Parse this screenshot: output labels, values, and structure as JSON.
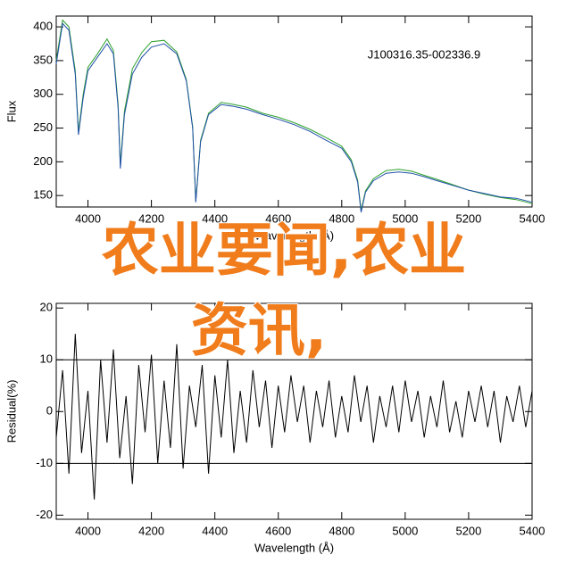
{
  "chart_data": [
    {
      "type": "line",
      "xlabel": "Wavelength (Å)",
      "ylabel": "Flux",
      "annotation": "J100316.35-002336.9",
      "xlim": [
        3900,
        5400
      ],
      "ylim": [
        133,
        416
      ],
      "xticks": [
        4000,
        4200,
        4400,
        4600,
        4800,
        5000,
        5200,
        5400
      ],
      "yticks": [
        150,
        200,
        250,
        300,
        350,
        400
      ],
      "x": [
        3900,
        3920,
        3940,
        3960,
        3970,
        3985,
        4000,
        4030,
        4060,
        4080,
        4095,
        4102,
        4115,
        4140,
        4170,
        4200,
        4240,
        4280,
        4310,
        4330,
        4340,
        4355,
        4380,
        4420,
        4460,
        4500,
        4550,
        4600,
        4650,
        4700,
        4750,
        4800,
        4830,
        4850,
        4861,
        4875,
        4900,
        4940,
        4980,
        5020,
        5060,
        5100,
        5150,
        5200,
        5250,
        5300,
        5350,
        5400
      ],
      "series": [
        {
          "color": "#2ca02c",
          "values": [
            350,
            410,
            400,
            335,
            245,
            300,
            340,
            360,
            382,
            365,
            285,
            195,
            275,
            338,
            362,
            378,
            380,
            363,
            322,
            252,
            142,
            232,
            272,
            288,
            285,
            281,
            272,
            266,
            258,
            248,
            236,
            223,
            203,
            173,
            128,
            157,
            175,
            187,
            189,
            186,
            180,
            174,
            166,
            158,
            152,
            147,
            144,
            138
          ]
        },
        {
          "color": "#1f4fa8",
          "values": [
            345,
            405,
            395,
            330,
            240,
            295,
            335,
            355,
            375,
            360,
            280,
            190,
            270,
            330,
            355,
            370,
            375,
            360,
            320,
            250,
            140,
            230,
            270,
            285,
            282,
            278,
            270,
            263,
            255,
            245,
            232,
            220,
            200,
            170,
            125,
            155,
            172,
            183,
            185,
            183,
            178,
            172,
            165,
            158,
            153,
            148,
            146,
            140
          ]
        }
      ]
    },
    {
      "type": "line",
      "xlabel": "Wavelength (Å)",
      "ylabel": "Residual(%)",
      "xlim": [
        3900,
        5400
      ],
      "ylim": [
        -20.8,
        20.9
      ],
      "xticks": [
        4000,
        4200,
        4400,
        4600,
        4800,
        5000,
        5200,
        5400
      ],
      "yticks": [
        -20,
        -10,
        0,
        10,
        20
      ],
      "hlines": [
        -10,
        10
      ],
      "x": [
        3900,
        3920,
        3940,
        3960,
        3980,
        4000,
        4020,
        4040,
        4060,
        4080,
        4100,
        4120,
        4140,
        4160,
        4180,
        4200,
        4220,
        4240,
        4260,
        4280,
        4300,
        4320,
        4340,
        4360,
        4380,
        4400,
        4420,
        4440,
        4460,
        4480,
        4500,
        4520,
        4540,
        4560,
        4580,
        4600,
        4620,
        4640,
        4660,
        4680,
        4700,
        4720,
        4740,
        4760,
        4780,
        4800,
        4820,
        4840,
        4860,
        4880,
        4900,
        4920,
        4940,
        4960,
        4980,
        5000,
        5020,
        5040,
        5060,
        5080,
        5100,
        5120,
        5140,
        5160,
        5180,
        5200,
        5220,
        5240,
        5260,
        5280,
        5300,
        5320,
        5340,
        5360,
        5380,
        5400
      ],
      "series": [
        {
          "color": "#000000",
          "values": [
            -5,
            8,
            -12,
            15,
            -8,
            4,
            -17,
            10,
            -6,
            12,
            -9,
            3,
            -14,
            9,
            -4,
            11,
            -10,
            6,
            -7,
            13,
            -11,
            5,
            -3,
            9,
            -12,
            7,
            -5,
            10,
            -8,
            4,
            -6,
            8,
            -3,
            6,
            -7,
            5,
            -4,
            7,
            -2,
            5,
            -6,
            4,
            -3,
            6,
            -5,
            3,
            -4,
            7,
            -2,
            5,
            -6,
            3,
            -3,
            5,
            -4,
            6,
            -2,
            4,
            -5,
            3,
            -3,
            6,
            -4,
            2,
            -5,
            4,
            -2,
            5,
            -3,
            4,
            -6,
            3,
            -2,
            5,
            -3,
            4
          ]
        }
      ]
    }
  ],
  "overlay": {
    "lines": [
      "农业要闻,农业",
      "资讯,"
    ]
  }
}
